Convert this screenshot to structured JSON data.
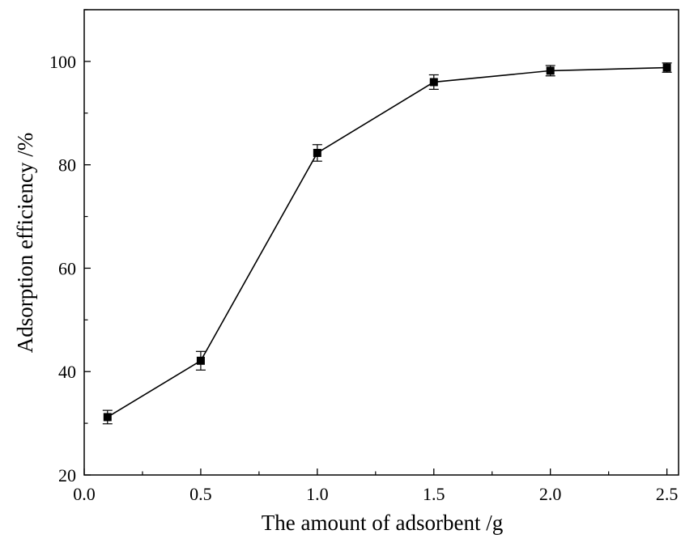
{
  "chart_data": {
    "type": "line",
    "title": "",
    "xlabel": "The amount of adsorbent /g",
    "ylabel": "Adsorption efficiency /%",
    "xlim": [
      0.0,
      2.55
    ],
    "ylim": [
      20,
      110
    ],
    "x_ticks": [
      0.0,
      0.5,
      1.0,
      1.5,
      2.0,
      2.5
    ],
    "x_tick_labels": [
      "0.0",
      "0.5",
      "1.0",
      "1.5",
      "2.0",
      "2.5"
    ],
    "y_ticks": [
      20,
      40,
      60,
      80,
      100
    ],
    "y_tick_labels": [
      "20",
      "40",
      "60",
      "80",
      "100"
    ],
    "x_minor_ticks": [
      0.25,
      0.75,
      1.25,
      1.75,
      2.25
    ],
    "y_minor_ticks": [
      30,
      50,
      70,
      90,
      110
    ],
    "grid": false,
    "legend": "none",
    "marker": "filled-square",
    "series": [
      {
        "x": [
          0.1,
          0.5,
          1.0,
          1.5,
          2.0,
          2.5
        ],
        "values": [
          31.2,
          42.1,
          82.3,
          96.0,
          98.2,
          98.8
        ],
        "error": [
          1.3,
          1.8,
          1.6,
          1.4,
          1.0,
          0.9
        ]
      }
    ],
    "colors": {
      "line": "#000000",
      "marker": "#000000",
      "axis": "#000000"
    }
  }
}
